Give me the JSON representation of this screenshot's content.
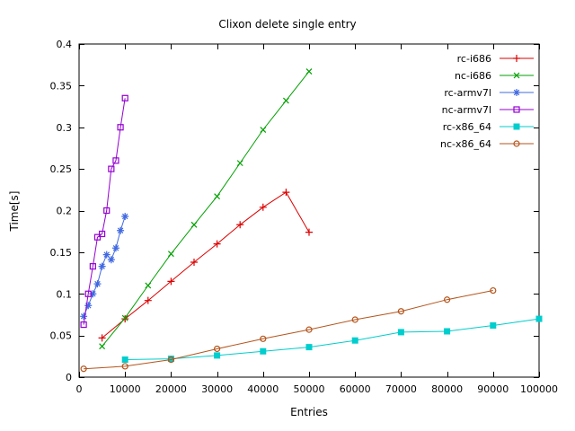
{
  "chart_data": {
    "type": "line",
    "title": "Clixon delete single entry",
    "xlabel": "Entries",
    "ylabel": "Time[s]",
    "xlim": [
      0,
      100000
    ],
    "ylim": [
      0,
      0.4
    ],
    "grid": false,
    "legend_position": "top-right-inside",
    "axis_color": "#000000",
    "background_color": "#ffffff",
    "xticks": [
      0,
      10000,
      20000,
      30000,
      40000,
      50000,
      60000,
      70000,
      80000,
      90000,
      100000
    ],
    "xtick_labels": [
      "0",
      "10000",
      "20000",
      "30000",
      "40000",
      "50000",
      "60000",
      "70000",
      "80000",
      "90000",
      "100000"
    ],
    "yticks": [
      0,
      0.05,
      0.1,
      0.15,
      0.2,
      0.25,
      0.3,
      0.35,
      0.4
    ],
    "ytick_labels": [
      "0",
      "0.05",
      "0.1",
      "0.15",
      "0.2",
      "0.25",
      "0.3",
      "0.35",
      "0.4"
    ],
    "series": [
      {
        "name": "rc-i686",
        "color": "#dd0000",
        "marker": "plus",
        "x": [
          5000,
          10000,
          15000,
          20000,
          25000,
          30000,
          35000,
          40000,
          45000,
          50000
        ],
        "y": [
          0.047,
          0.07,
          0.092,
          0.115,
          0.138,
          0.16,
          0.183,
          0.204,
          0.222,
          0.174
        ]
      },
      {
        "name": "nc-i686",
        "color": "#00a000",
        "marker": "cross",
        "x": [
          5000,
          10000,
          15000,
          20000,
          25000,
          30000,
          35000,
          40000,
          45000,
          50000
        ],
        "y": [
          0.037,
          0.071,
          0.11,
          0.148,
          0.183,
          0.217,
          0.257,
          0.297,
          0.332,
          0.367
        ]
      },
      {
        "name": "rc-armv7l",
        "color": "#4169e1",
        "marker": "asterisk",
        "x": [
          1000,
          2000,
          3000,
          4000,
          5000,
          6000,
          7000,
          8000,
          9000,
          10000
        ],
        "y": [
          0.073,
          0.086,
          0.1,
          0.112,
          0.133,
          0.147,
          0.141,
          0.155,
          0.176,
          0.193
        ]
      },
      {
        "name": "nc-armv7l",
        "color": "#9400d3",
        "marker": "square-open",
        "x": [
          1000,
          2000,
          3000,
          4000,
          5000,
          6000,
          7000,
          8000,
          9000,
          10000
        ],
        "y": [
          0.063,
          0.1,
          0.133,
          0.168,
          0.172,
          0.2,
          0.25,
          0.26,
          0.3,
          0.335
        ]
      },
      {
        "name": "rc-x86_64",
        "color": "#00cdcd",
        "marker": "square-filled",
        "x": [
          10000,
          20000,
          30000,
          40000,
          50000,
          60000,
          70000,
          80000,
          90000,
          100000
        ],
        "y": [
          0.021,
          0.022,
          0.026,
          0.031,
          0.036,
          0.044,
          0.054,
          0.055,
          0.062,
          0.07
        ]
      },
      {
        "name": "nc-x86_64",
        "color": "#b4541b",
        "marker": "circle-open",
        "x": [
          1000,
          10000,
          20000,
          30000,
          40000,
          50000,
          60000,
          70000,
          80000,
          90000
        ],
        "y": [
          0.01,
          0.013,
          0.021,
          0.034,
          0.046,
          0.057,
          0.069,
          0.079,
          0.093,
          0.104
        ]
      }
    ]
  }
}
